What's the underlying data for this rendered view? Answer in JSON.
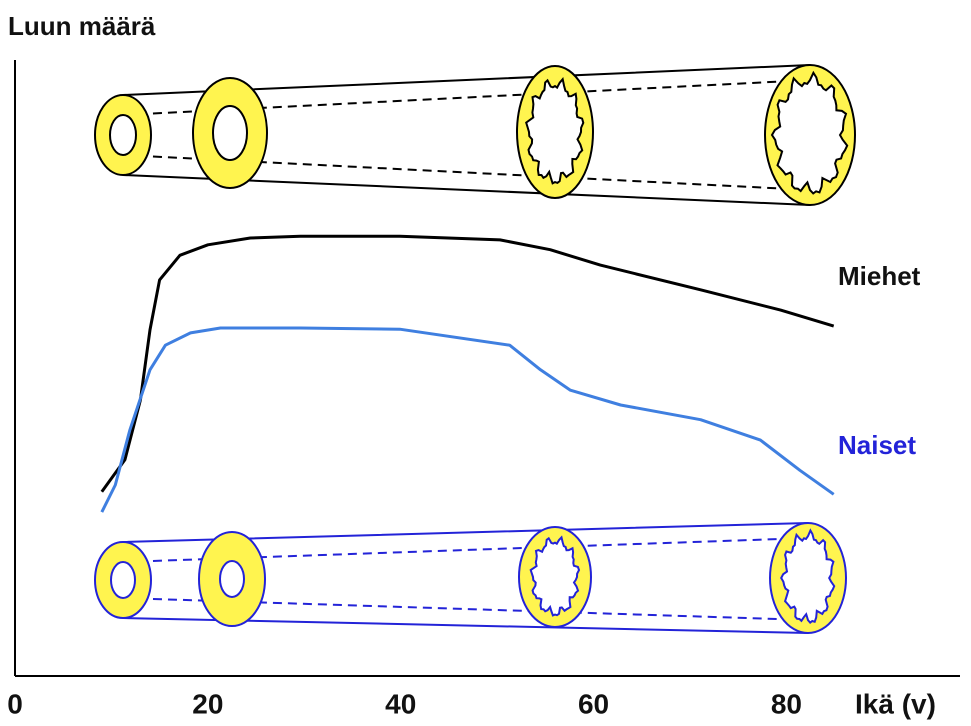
{
  "chart_data": {
    "type": "line",
    "y_label": "Luun määrä",
    "x_label": "Ikä (v)",
    "xlim": [
      0,
      98
    ],
    "xticks": [
      0,
      20,
      40,
      60,
      80
    ],
    "ylim": [
      0,
      100
    ],
    "series": [
      {
        "name": "Miehet",
        "color": "#000000",
        "x": [
          9.0,
          11.4,
          13.0,
          14.0,
          15.0,
          17.1,
          20.0,
          24.4,
          29.6,
          39.9,
          50.3,
          55.5,
          60.7,
          71.1,
          79.4,
          84.9
        ],
        "values": [
          29.9,
          35.1,
          44.8,
          56.2,
          64.3,
          68.3,
          70.0,
          71.1,
          71.4,
          71.4,
          70.8,
          69.2,
          66.7,
          62.7,
          59.4,
          56.8
        ]
      },
      {
        "name": "Naiset",
        "color": "#3f7fe0",
        "x": [
          9.0,
          10.4,
          11.9,
          14.0,
          15.6,
          18.2,
          21.3,
          29.6,
          39.9,
          51.3,
          54.5,
          57.6,
          62.8,
          71.1,
          77.3,
          81.4,
          84.9
        ],
        "values": [
          26.6,
          31.0,
          39.9,
          49.7,
          53.7,
          55.7,
          56.5,
          56.5,
          56.3,
          53.7,
          49.7,
          46.4,
          44.0,
          41.6,
          38.3,
          33.4,
          29.5
        ]
      }
    ]
  }
}
